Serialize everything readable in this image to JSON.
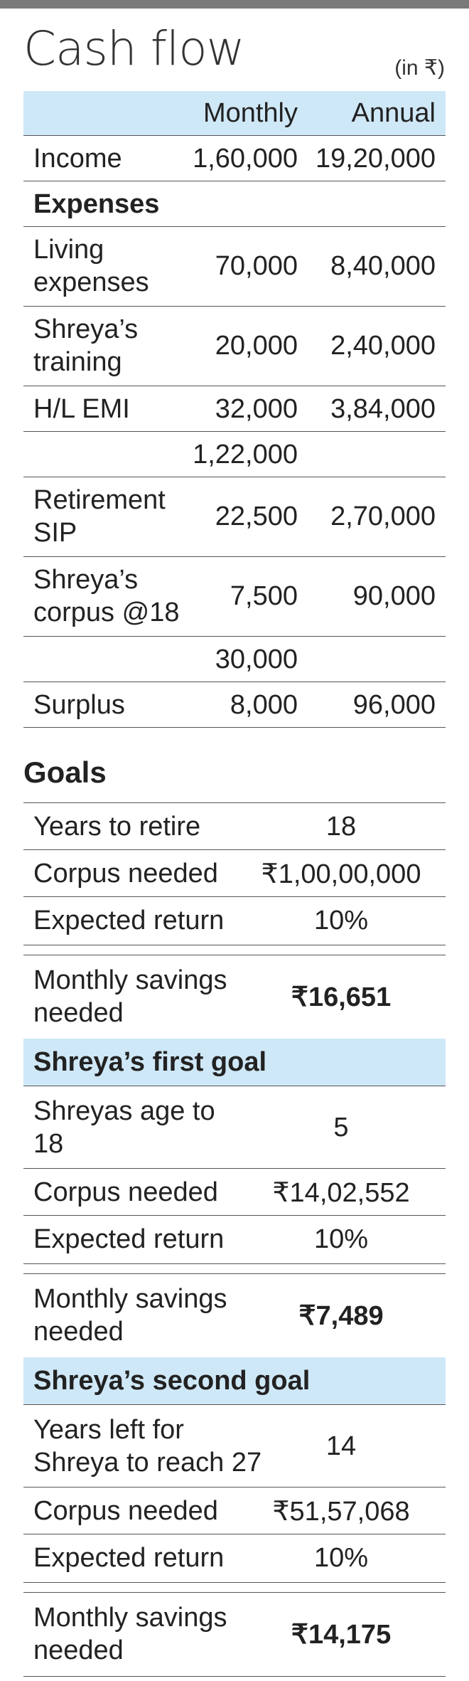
{
  "title": "Cash flow",
  "unit": "(in ₹)",
  "cashflow": {
    "columns": [
      "Monthly",
      "Annual"
    ],
    "income": {
      "label": "Income",
      "monthly": "1,60,000",
      "annual": "19,20,000"
    },
    "expenses_label": "Expenses",
    "living": {
      "label": "Living expenses",
      "monthly": "70,000",
      "annual": "8,40,000"
    },
    "training": {
      "label": "Shreya’s training",
      "monthly": "20,000",
      "annual": "2,40,000"
    },
    "emi": {
      "label": "H/L EMI",
      "monthly": "32,000",
      "annual": "3,84,000"
    },
    "subtotal1": "1,22,000",
    "retirement_sip": {
      "label": "Retirement SIP",
      "monthly": "22,500",
      "annual": "2,70,000"
    },
    "corpus18": {
      "label": "Shreya’s corpus @18",
      "monthly": "7,500",
      "annual": "90,000"
    },
    "subtotal2": "30,000",
    "surplus": {
      "label": "Surplus",
      "monthly": "8,000",
      "annual": "96,000"
    }
  },
  "goals": {
    "title": "Goals",
    "retire": [
      {
        "label": "Years to retire",
        "value": "18"
      },
      {
        "label": "Corpus needed",
        "value": "₹1,00,00,000"
      },
      {
        "label": "Expected return",
        "value": "10%"
      },
      {
        "label": "Monthly savings needed",
        "value": "₹16,651"
      }
    ],
    "first_goal_title": "Shreya’s first goal",
    "first": [
      {
        "label": "Shreyas age to 18",
        "value": "5"
      },
      {
        "label": "Corpus needed",
        "value": "₹14,02,552"
      },
      {
        "label": "Expected return",
        "value": "10%"
      },
      {
        "label": "Monthly savings needed",
        "value": "₹7,489"
      }
    ],
    "second_goal_title": "Shreya’s second goal",
    "second": [
      {
        "label": "Years left for Shreya to reach 27",
        "value": "14"
      },
      {
        "label": "Corpus needed",
        "value": "₹51,57,068"
      },
      {
        "label": "Expected return",
        "value": "10%"
      },
      {
        "label": "Monthly savings needed",
        "value": "₹14,175"
      }
    ]
  }
}
